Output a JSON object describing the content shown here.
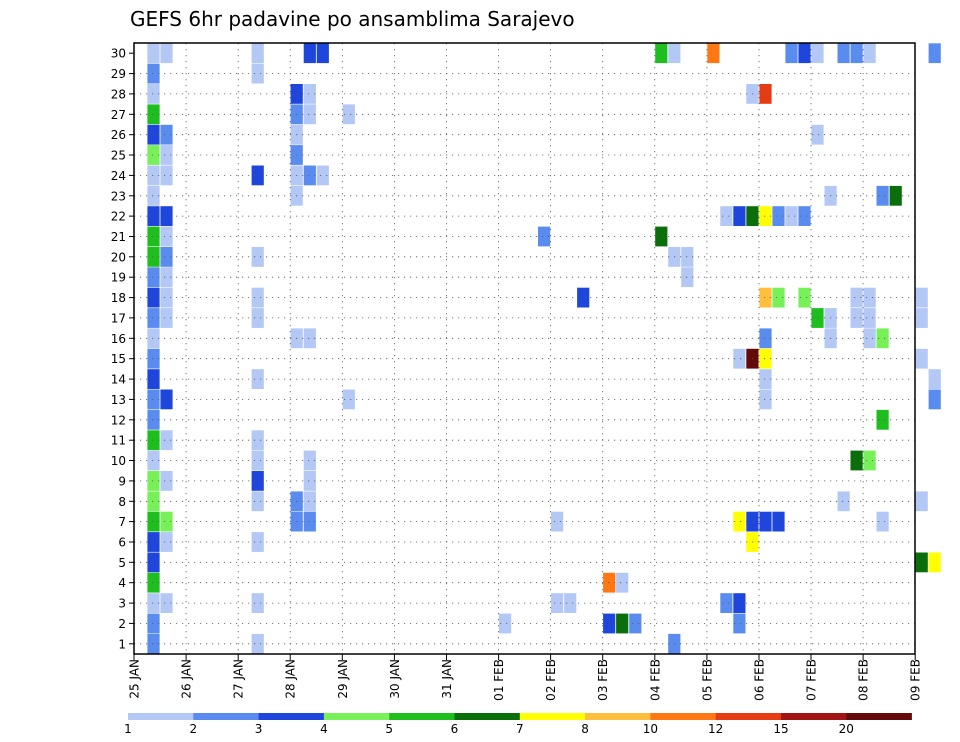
{
  "chart_data": {
    "type": "heatmap",
    "title": "GEFS 6hr padavine po ansamblima Sarajevo",
    "xlabel": "",
    "ylabel": "",
    "grid": true,
    "x_ticks": [
      "25 JAN",
      "26 JAN",
      "27 JAN",
      "28 JAN",
      "29 JAN",
      "30 JAN",
      "31 JAN",
      "01 FEB",
      "02 FEB",
      "03 FEB",
      "04 FEB",
      "05 FEB",
      "06 FEB",
      "07 FEB",
      "08 FEB",
      "09 FEB"
    ],
    "y_ticks": [
      "1",
      "2",
      "3",
      "4",
      "5",
      "6",
      "7",
      "8",
      "9",
      "10",
      "11",
      "12",
      "13",
      "14",
      "15",
      "16",
      "17",
      "18",
      "19",
      "20",
      "21",
      "22",
      "23",
      "24",
      "25",
      "26",
      "27",
      "28",
      "29",
      "30"
    ],
    "y_range": [
      1,
      30
    ],
    "x_unit": "6-hour steps from 25 JAN 00Z",
    "levels": [
      1,
      2,
      3,
      4,
      5,
      6,
      7,
      8,
      10,
      12,
      15,
      20
    ],
    "colorbar_labels": [
      "1",
      "2",
      "3",
      "4",
      "5",
      "6",
      "7",
      "8",
      "10",
      "12",
      "15",
      "20"
    ],
    "colors": [
      "#b4c8f5",
      "#5a8cf0",
      "#1e46dc",
      "#78f05a",
      "#1ebe1e",
      "#0a6e0a",
      "#ffff00",
      "#ffbe3c",
      "#ff7814",
      "#e63c14",
      "#a01414",
      "#640a0a"
    ],
    "cells": [
      {
        "member": 30,
        "step": 1,
        "cat": 1
      },
      {
        "member": 30,
        "step": 2,
        "cat": 1
      },
      {
        "member": 30,
        "step": 9,
        "cat": 1
      },
      {
        "member": 30,
        "step": 13,
        "cat": 3
      },
      {
        "member": 30,
        "step": 14,
        "cat": 3
      },
      {
        "member": 30,
        "step": 40,
        "cat": 5
      },
      {
        "member": 30,
        "step": 41,
        "cat": 1
      },
      {
        "member": 30,
        "step": 44,
        "cat": 9
      },
      {
        "member": 30,
        "step": 50,
        "cat": 2
      },
      {
        "member": 30,
        "step": 51,
        "cat": 3
      },
      {
        "member": 30,
        "step": 52,
        "cat": 1
      },
      {
        "member": 30,
        "step": 54,
        "cat": 2
      },
      {
        "member": 30,
        "step": 55,
        "cat": 2
      },
      {
        "member": 30,
        "step": 56,
        "cat": 1
      },
      {
        "member": 30,
        "step": 61,
        "cat": 2
      },
      {
        "member": 29,
        "step": 1,
        "cat": 2
      },
      {
        "member": 29,
        "step": 9,
        "cat": 1
      },
      {
        "member": 28,
        "step": 1,
        "cat": 1
      },
      {
        "member": 28,
        "step": 12,
        "cat": 3
      },
      {
        "member": 28,
        "step": 13,
        "cat": 1
      },
      {
        "member": 28,
        "step": 47,
        "cat": 1
      },
      {
        "member": 28,
        "step": 48,
        "cat": 10
      },
      {
        "member": 27,
        "step": 1,
        "cat": 5
      },
      {
        "member": 27,
        "step": 12,
        "cat": 2
      },
      {
        "member": 27,
        "step": 13,
        "cat": 1
      },
      {
        "member": 27,
        "step": 16,
        "cat": 1
      },
      {
        "member": 26,
        "step": 1,
        "cat": 3
      },
      {
        "member": 26,
        "step": 2,
        "cat": 2
      },
      {
        "member": 26,
        "step": 12,
        "cat": 1
      },
      {
        "member": 26,
        "step": 52,
        "cat": 1
      },
      {
        "member": 25,
        "step": 1,
        "cat": 4
      },
      {
        "member": 25,
        "step": 2,
        "cat": 1
      },
      {
        "member": 25,
        "step": 12,
        "cat": 2
      },
      {
        "member": 24,
        "step": 1,
        "cat": 1
      },
      {
        "member": 24,
        "step": 2,
        "cat": 1
      },
      {
        "member": 24,
        "step": 9,
        "cat": 3
      },
      {
        "member": 24,
        "step": 12,
        "cat": 1
      },
      {
        "member": 24,
        "step": 13,
        "cat": 2
      },
      {
        "member": 24,
        "step": 14,
        "cat": 1
      },
      {
        "member": 23,
        "step": 1,
        "cat": 1
      },
      {
        "member": 23,
        "step": 12,
        "cat": 1
      },
      {
        "member": 23,
        "step": 53,
        "cat": 1
      },
      {
        "member": 23,
        "step": 57,
        "cat": 2
      },
      {
        "member": 23,
        "step": 58,
        "cat": 6
      },
      {
        "member": 22,
        "step": 1,
        "cat": 3
      },
      {
        "member": 22,
        "step": 2,
        "cat": 3
      },
      {
        "member": 22,
        "step": 45,
        "cat": 1
      },
      {
        "member": 22,
        "step": 46,
        "cat": 3
      },
      {
        "member": 22,
        "step": 47,
        "cat": 6
      },
      {
        "member": 22,
        "step": 48,
        "cat": 7
      },
      {
        "member": 22,
        "step": 49,
        "cat": 2
      },
      {
        "member": 22,
        "step": 50,
        "cat": 1
      },
      {
        "member": 22,
        "step": 51,
        "cat": 2
      },
      {
        "member": 21,
        "step": 1,
        "cat": 5
      },
      {
        "member": 21,
        "step": 2,
        "cat": 1
      },
      {
        "member": 21,
        "step": 31,
        "cat": 2
      },
      {
        "member": 21,
        "step": 40,
        "cat": 6
      },
      {
        "member": 20,
        "step": 1,
        "cat": 5
      },
      {
        "member": 20,
        "step": 2,
        "cat": 2
      },
      {
        "member": 20,
        "step": 9,
        "cat": 1
      },
      {
        "member": 20,
        "step": 41,
        "cat": 1
      },
      {
        "member": 20,
        "step": 42,
        "cat": 1
      },
      {
        "member": 19,
        "step": 1,
        "cat": 2
      },
      {
        "member": 19,
        "step": 2,
        "cat": 1
      },
      {
        "member": 19,
        "step": 42,
        "cat": 1
      },
      {
        "member": 18,
        "step": 1,
        "cat": 3
      },
      {
        "member": 18,
        "step": 2,
        "cat": 1
      },
      {
        "member": 18,
        "step": 9,
        "cat": 1
      },
      {
        "member": 18,
        "step": 34,
        "cat": 3
      },
      {
        "member": 18,
        "step": 48,
        "cat": 8
      },
      {
        "member": 18,
        "step": 49,
        "cat": 4
      },
      {
        "member": 18,
        "step": 51,
        "cat": 4
      },
      {
        "member": 18,
        "step": 55,
        "cat": 1
      },
      {
        "member": 18,
        "step": 56,
        "cat": 1
      },
      {
        "member": 18,
        "step": 60,
        "cat": 1
      },
      {
        "member": 17,
        "step": 1,
        "cat": 2
      },
      {
        "member": 17,
        "step": 2,
        "cat": 1
      },
      {
        "member": 17,
        "step": 9,
        "cat": 1
      },
      {
        "member": 17,
        "step": 52,
        "cat": 5
      },
      {
        "member": 17,
        "step": 53,
        "cat": 1
      },
      {
        "member": 17,
        "step": 55,
        "cat": 1
      },
      {
        "member": 17,
        "step": 56,
        "cat": 1
      },
      {
        "member": 17,
        "step": 60,
        "cat": 1
      },
      {
        "member": 16,
        "step": 1,
        "cat": 1
      },
      {
        "member": 16,
        "step": 12,
        "cat": 1
      },
      {
        "member": 16,
        "step": 13,
        "cat": 1
      },
      {
        "member": 16,
        "step": 48,
        "cat": 2
      },
      {
        "member": 16,
        "step": 53,
        "cat": 1
      },
      {
        "member": 16,
        "step": 56,
        "cat": 1
      },
      {
        "member": 16,
        "step": 57,
        "cat": 4
      },
      {
        "member": 15,
        "step": 1,
        "cat": 2
      },
      {
        "member": 15,
        "step": 46,
        "cat": 1
      },
      {
        "member": 15,
        "step": 47,
        "cat": 12
      },
      {
        "member": 15,
        "step": 48,
        "cat": 7
      },
      {
        "member": 15,
        "step": 60,
        "cat": 1
      },
      {
        "member": 14,
        "step": 1,
        "cat": 3
      },
      {
        "member": 14,
        "step": 9,
        "cat": 1
      },
      {
        "member": 14,
        "step": 48,
        "cat": 1
      },
      {
        "member": 14,
        "step": 61,
        "cat": 1
      },
      {
        "member": 13,
        "step": 1,
        "cat": 2
      },
      {
        "member": 13,
        "step": 2,
        "cat": 3
      },
      {
        "member": 13,
        "step": 16,
        "cat": 1
      },
      {
        "member": 13,
        "step": 48,
        "cat": 1
      },
      {
        "member": 13,
        "step": 61,
        "cat": 2
      },
      {
        "member": 12,
        "step": 1,
        "cat": 2
      },
      {
        "member": 12,
        "step": 57,
        "cat": 5
      },
      {
        "member": 11,
        "step": 1,
        "cat": 5
      },
      {
        "member": 11,
        "step": 2,
        "cat": 1
      },
      {
        "member": 11,
        "step": 9,
        "cat": 1
      },
      {
        "member": 10,
        "step": 1,
        "cat": 1
      },
      {
        "member": 10,
        "step": 9,
        "cat": 1
      },
      {
        "member": 10,
        "step": 13,
        "cat": 1
      },
      {
        "member": 10,
        "step": 55,
        "cat": 6
      },
      {
        "member": 10,
        "step": 56,
        "cat": 4
      },
      {
        "member": 9,
        "step": 1,
        "cat": 4
      },
      {
        "member": 9,
        "step": 2,
        "cat": 1
      },
      {
        "member": 9,
        "step": 9,
        "cat": 3
      },
      {
        "member": 9,
        "step": 13,
        "cat": 1
      },
      {
        "member": 8,
        "step": 1,
        "cat": 4
      },
      {
        "member": 8,
        "step": 9,
        "cat": 1
      },
      {
        "member": 8,
        "step": 12,
        "cat": 2
      },
      {
        "member": 8,
        "step": 13,
        "cat": 1
      },
      {
        "member": 8,
        "step": 54,
        "cat": 1
      },
      {
        "member": 8,
        "step": 60,
        "cat": 1
      },
      {
        "member": 7,
        "step": 1,
        "cat": 5
      },
      {
        "member": 7,
        "step": 2,
        "cat": 4
      },
      {
        "member": 7,
        "step": 12,
        "cat": 2
      },
      {
        "member": 7,
        "step": 13,
        "cat": 2
      },
      {
        "member": 7,
        "step": 32,
        "cat": 1
      },
      {
        "member": 7,
        "step": 46,
        "cat": 7
      },
      {
        "member": 7,
        "step": 47,
        "cat": 3
      },
      {
        "member": 7,
        "step": 48,
        "cat": 3
      },
      {
        "member": 7,
        "step": 49,
        "cat": 3
      },
      {
        "member": 7,
        "step": 57,
        "cat": 1
      },
      {
        "member": 6,
        "step": 1,
        "cat": 3
      },
      {
        "member": 6,
        "step": 2,
        "cat": 1
      },
      {
        "member": 6,
        "step": 9,
        "cat": 1
      },
      {
        "member": 6,
        "step": 47,
        "cat": 7
      },
      {
        "member": 5,
        "step": 1,
        "cat": 3
      },
      {
        "member": 5,
        "step": 60,
        "cat": 6
      },
      {
        "member": 5,
        "step": 61,
        "cat": 7
      },
      {
        "member": 4,
        "step": 1,
        "cat": 5
      },
      {
        "member": 4,
        "step": 36,
        "cat": 9
      },
      {
        "member": 4,
        "step": 37,
        "cat": 1
      },
      {
        "member": 3,
        "step": 1,
        "cat": 1
      },
      {
        "member": 3,
        "step": 2,
        "cat": 1
      },
      {
        "member": 3,
        "step": 9,
        "cat": 1
      },
      {
        "member": 3,
        "step": 32,
        "cat": 1
      },
      {
        "member": 3,
        "step": 33,
        "cat": 1
      },
      {
        "member": 3,
        "step": 45,
        "cat": 2
      },
      {
        "member": 3,
        "step": 46,
        "cat": 3
      },
      {
        "member": 2,
        "step": 1,
        "cat": 2
      },
      {
        "member": 2,
        "step": 28,
        "cat": 1
      },
      {
        "member": 2,
        "step": 36,
        "cat": 3
      },
      {
        "member": 2,
        "step": 37,
        "cat": 6
      },
      {
        "member": 2,
        "step": 38,
        "cat": 2
      },
      {
        "member": 2,
        "step": 46,
        "cat": 2
      },
      {
        "member": 1,
        "step": 1,
        "cat": 2
      },
      {
        "member": 1,
        "step": 9,
        "cat": 1
      },
      {
        "member": 1,
        "step": 41,
        "cat": 2
      }
    ]
  }
}
